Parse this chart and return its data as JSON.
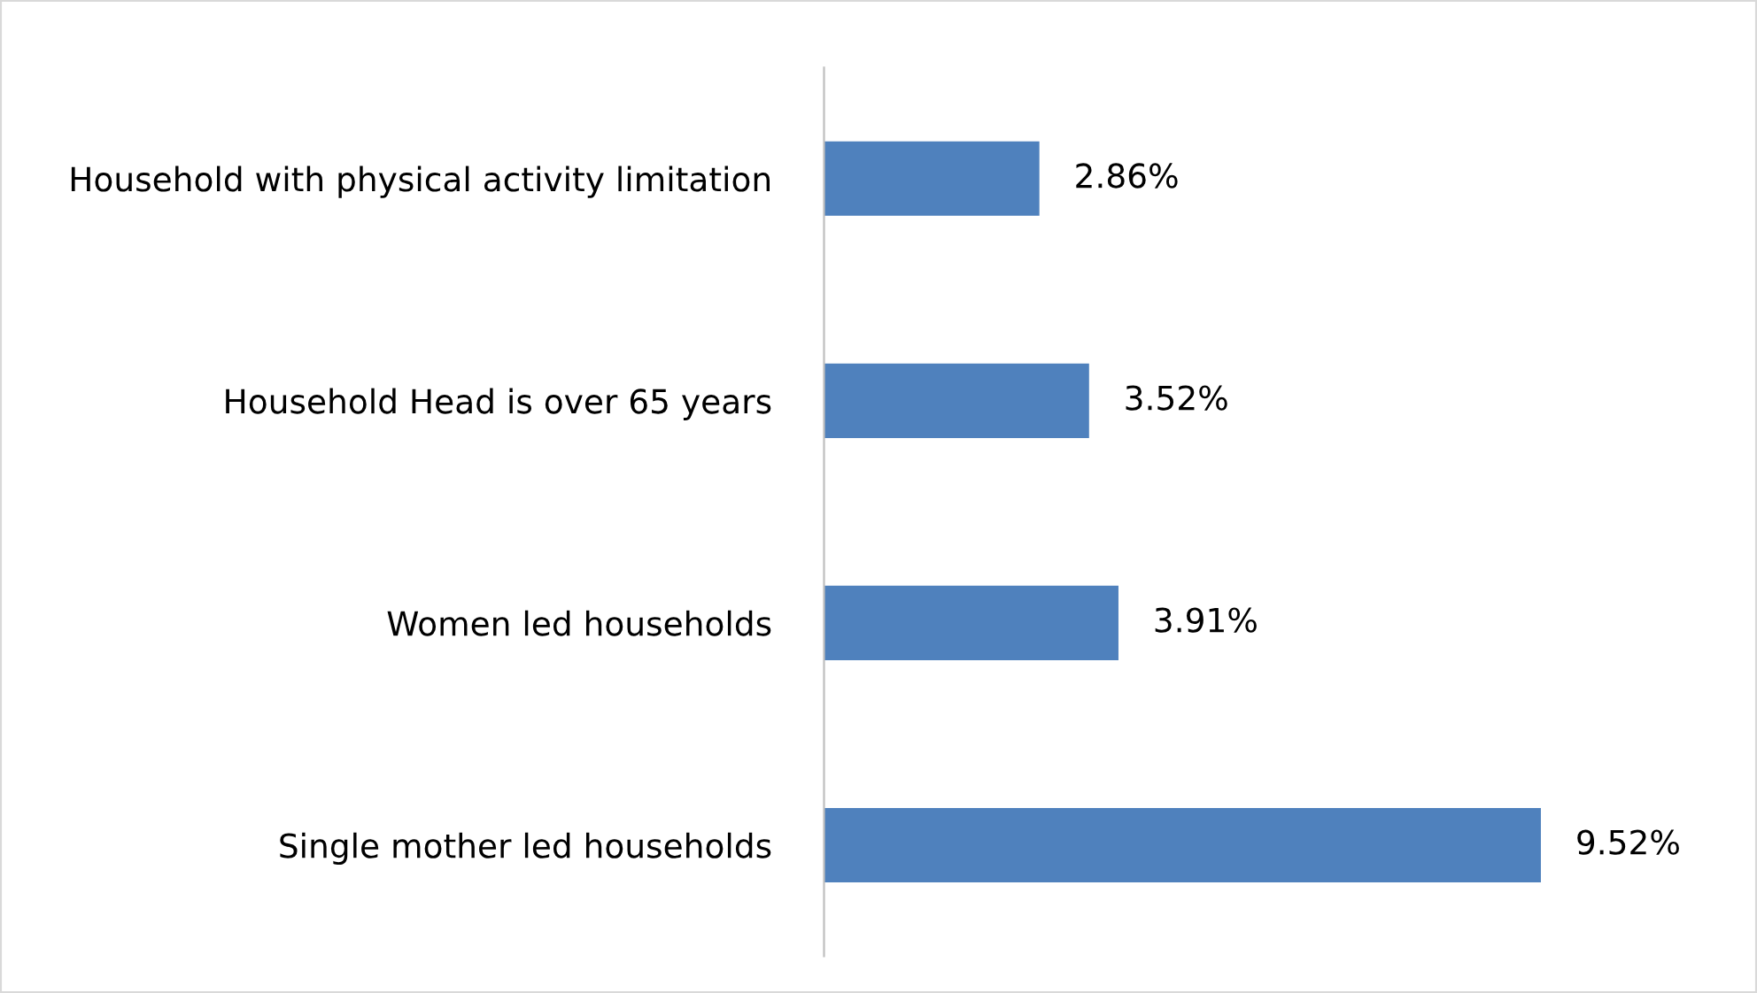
{
  "chart_data": {
    "type": "bar",
    "orientation": "horizontal",
    "categories": [
      "Household with physical activity limitation",
      "Household Head is over 65 years",
      "Women led households",
      "Single mother led households"
    ],
    "values": [
      2.86,
      3.52,
      3.91,
      9.52
    ],
    "value_labels": [
      "2.86%",
      "3.52%",
      "3.91%",
      "9.52%"
    ],
    "color": "#4f81bd",
    "grid": false,
    "legend": false
  }
}
